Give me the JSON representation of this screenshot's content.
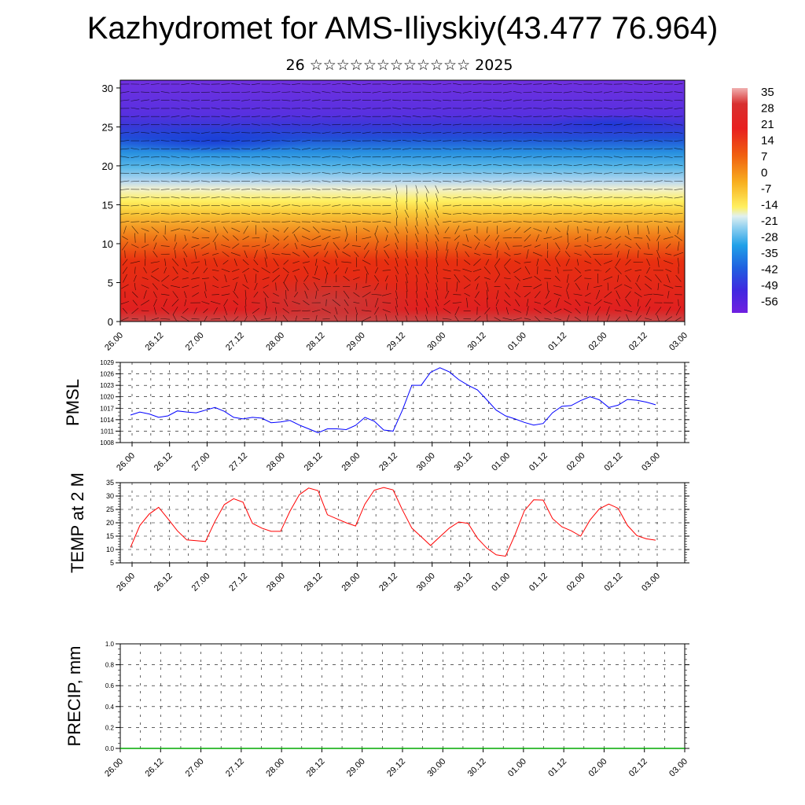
{
  "header": {
    "title": "Kazhydromet for AMS-Iliyskiy(43.477 76.964)",
    "subtitle": "26 ☆☆☆☆☆☆☆☆☆☆☆☆ 2025"
  },
  "chart_data": [
    {
      "type": "heatmap",
      "name": "cross-section",
      "xticks": [
        "26.00",
        "26.12",
        "27.00",
        "27.12",
        "28.00",
        "28.12",
        "29.00",
        "29.12",
        "30.00",
        "30.12",
        "01.00",
        "01.12",
        "02.00",
        "02.12",
        "03.00"
      ],
      "yticks": [
        0,
        5,
        10,
        15,
        20,
        25,
        30
      ],
      "ylim": [
        0,
        31
      ],
      "colorbar": {
        "labels": [
          "35",
          "28",
          "21",
          "14",
          "7",
          "0",
          "-7",
          "-14",
          "-21",
          "-28",
          "-35",
          "-42",
          "-49",
          "-56"
        ],
        "range": [
          -63,
          42
        ]
      },
      "wind_vectors": true
    },
    {
      "type": "line",
      "ylabel": "PMSL",
      "color": "#0000ff",
      "ylim": [
        1008,
        1029
      ],
      "yticks": [
        "1008",
        "1011",
        "1014",
        "1017",
        "1020",
        "1023",
        "1026",
        "1029"
      ],
      "xticks": [
        "26.00",
        "26.12",
        "27.00",
        "27.12",
        "28.00",
        "28.12",
        "29.00",
        "29.12",
        "30.00",
        "30.12",
        "01.00",
        "01.12",
        "02.00",
        "02.12",
        "03.00"
      ],
      "values": [
        1015.2,
        1016.0,
        1015.5,
        1014.6,
        1015.0,
        1016.3,
        1016.0,
        1015.8,
        1016.5,
        1017.2,
        1016.2,
        1014.6,
        1014.2,
        1014.6,
        1014.4,
        1013.2,
        1013.4,
        1013.8,
        1012.6,
        1011.6,
        1010.6,
        1011.6,
        1011.6,
        1011.4,
        1012.5,
        1014.6,
        1013.6,
        1011.3,
        1011.0,
        1016.5,
        1023.0,
        1023.0,
        1026.4,
        1027.6,
        1026.5,
        1024.5,
        1023.0,
        1021.8,
        1019.2,
        1016.5,
        1015.0,
        1014.2,
        1013.3,
        1012.6,
        1013.0,
        1015.8,
        1017.5,
        1017.7,
        1019.0,
        1020.0,
        1019.2,
        1017.2,
        1017.8,
        1019.3,
        1019.1,
        1018.6,
        1017.9
      ]
    },
    {
      "type": "line",
      "ylabel": "TEMP at 2 M",
      "color": "#ff0000",
      "ylim": [
        5,
        35
      ],
      "yticks": [
        "5",
        "10",
        "15",
        "20",
        "25",
        "30",
        "35"
      ],
      "xticks": [
        "26.00",
        "26.12",
        "27.00",
        "27.12",
        "28.00",
        "28.12",
        "29.00",
        "29.12",
        "30.00",
        "30.12",
        "01.00",
        "01.12",
        "02.00",
        "02.12",
        "03.00"
      ],
      "values": [
        10.8,
        19.0,
        23.3,
        25.8,
        21.5,
        17.0,
        13.6,
        13.3,
        13.0,
        20.5,
        26.8,
        29.0,
        27.7,
        19.8,
        18.0,
        16.8,
        16.8,
        24.3,
        30.5,
        33.0,
        32.0,
        23.0,
        21.5,
        20.0,
        18.8,
        27.0,
        32.2,
        33.2,
        32.3,
        24.8,
        18.0,
        14.8,
        11.5,
        14.8,
        18.0,
        20.3,
        19.8,
        14.2,
        10.5,
        8.0,
        7.5,
        15.5,
        24.5,
        28.6,
        28.5,
        21.6,
        18.5,
        17.0,
        15.0,
        21.0,
        25.2,
        27.0,
        25.4,
        19.0,
        15.2,
        14.0,
        13.5
      ]
    },
    {
      "type": "line",
      "ylabel": "PRECIP, mm",
      "color": "#00aa00",
      "ylim": [
        0,
        1.0
      ],
      "yticks": [
        "0.0",
        "0.2",
        "0.4",
        "0.6",
        "0.8",
        "1.0"
      ],
      "xticks": [
        "26.00",
        "26.12",
        "27.00",
        "27.12",
        "28.00",
        "28.12",
        "29.00",
        "29.12",
        "30.00",
        "30.12",
        "01.00",
        "01.12",
        "02.00",
        "02.12",
        "03.00"
      ],
      "values": [
        0,
        0,
        0,
        0,
        0,
        0,
        0,
        0,
        0,
        0,
        0,
        0,
        0,
        0,
        0,
        0,
        0,
        0,
        0,
        0,
        0,
        0,
        0,
        0,
        0,
        0,
        0,
        0,
        0,
        0,
        0,
        0,
        0,
        0,
        0,
        0,
        0,
        0,
        0,
        0,
        0,
        0,
        0,
        0,
        0,
        0,
        0,
        0,
        0,
        0,
        0,
        0,
        0,
        0,
        0,
        0,
        0
      ]
    }
  ]
}
